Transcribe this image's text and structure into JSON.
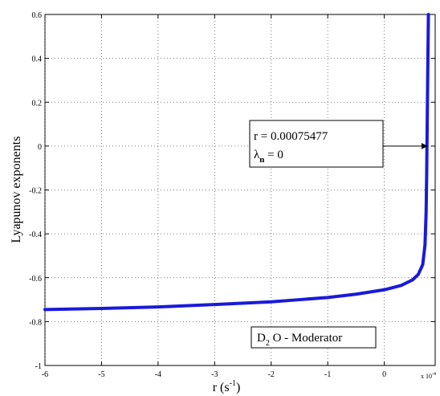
{
  "chart_data": {
    "type": "line",
    "xlabel": {
      "main": "r (s",
      "sup": "-1",
      "close": ")"
    },
    "ylabel": "Lyapunov exponents",
    "x_multiplier_label": "x 10",
    "x_multiplier_exp": "-4",
    "xlim": [
      -6,
      0.9
    ],
    "ylim": [
      -1,
      0.6
    ],
    "xticks": [
      -6,
      -5,
      -4,
      -3,
      -2,
      -1,
      0
    ],
    "xtick_labels": [
      "-6",
      "-5",
      "-4",
      "-3",
      "-2",
      "-1",
      "0"
    ],
    "yticks": [
      -1,
      -0.8,
      -0.6,
      -0.4,
      -0.2,
      0,
      0.2,
      0.4,
      0.6
    ],
    "ytick_labels": [
      "-1",
      "-0.8",
      "-0.6",
      "-0.4",
      "-0.2",
      "0",
      "0.2",
      "0.4",
      "0.6"
    ],
    "grid": true,
    "grid_style": "dotted",
    "series": [
      {
        "color": "#1a1ad9",
        "x": [
          -6.0,
          -5.0,
          -4.0,
          -3.0,
          -2.0,
          -1.5,
          -1.0,
          -0.5,
          0.0,
          0.3,
          0.5,
          0.6,
          0.68,
          0.72,
          0.74,
          0.75,
          0.7548,
          0.765,
          0.78
        ],
        "y": [
          -0.745,
          -0.74,
          -0.733,
          -0.722,
          -0.71,
          -0.7,
          -0.69,
          -0.675,
          -0.655,
          -0.635,
          -0.61,
          -0.585,
          -0.54,
          -0.45,
          -0.3,
          -0.12,
          0.0,
          0.25,
          0.6
        ]
      }
    ],
    "annotation": {
      "line1": "r = 0.00075477",
      "line2_symbol": "λ",
      "line2_sub": "n",
      "line2_rest": " = 0",
      "arrow_to": {
        "x": 0.75477,
        "y": 0
      }
    },
    "legend": {
      "prefix": "D",
      "sub": "2",
      "suffix": " O - Moderator",
      "placement": "lower-right"
    }
  }
}
